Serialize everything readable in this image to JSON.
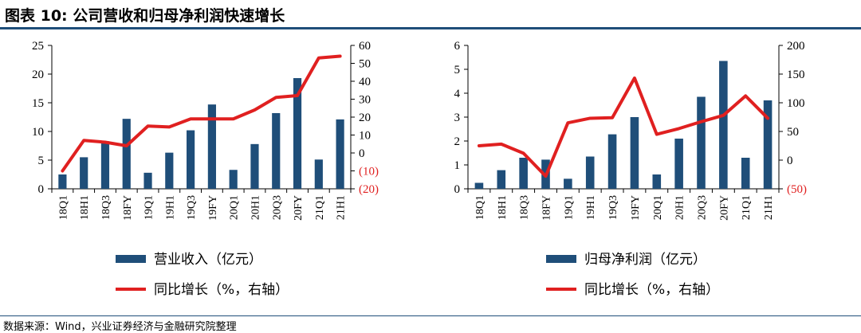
{
  "title": "图表 10:  公司营收和归母净利润快速增长",
  "source": "数据来源：Wind，兴业证券经济与金融研究院整理",
  "colors": {
    "bar": "#1f4e79",
    "line": "#e02020",
    "neg_label": "#e02020"
  },
  "chart_data": [
    {
      "type": "bar",
      "categories": [
        "18Q1",
        "18H1",
        "18Q3",
        "18FY",
        "19Q1",
        "19H1",
        "19Q3",
        "19FY",
        "20Q1",
        "20H1",
        "20Q3",
        "20FY",
        "21Q1",
        "21H1"
      ],
      "series": [
        {
          "name": "营业收入（亿元）",
          "type": "bar",
          "axis": "left",
          "values": [
            2.5,
            5.5,
            8.3,
            12.2,
            2.8,
            6.3,
            10.2,
            14.7,
            3.3,
            7.8,
            13.2,
            19.3,
            5.1,
            12.1
          ]
        },
        {
          "name": "同比增长（%，右轴）",
          "type": "line",
          "axis": "right",
          "values": [
            -10,
            7,
            6,
            4,
            15,
            14.5,
            19,
            19,
            19,
            24,
            31,
            32,
            53,
            54
          ]
        }
      ],
      "y_left": {
        "min": 0,
        "max": 25,
        "ticks": [
          0,
          5,
          10,
          15,
          20,
          25
        ],
        "tick_labels": [
          "0",
          "5",
          "10",
          "15",
          "20",
          "25"
        ]
      },
      "y_right": {
        "min": -20,
        "max": 60,
        "ticks": [
          -20,
          -10,
          0,
          10,
          20,
          30,
          40,
          50,
          60
        ],
        "tick_labels": [
          "(20)",
          "(10)",
          "0",
          "10",
          "20",
          "30",
          "40",
          "50",
          "60"
        ]
      },
      "grid": false,
      "legend_position": "bottom"
    },
    {
      "type": "bar",
      "categories": [
        "18Q1",
        "18H1",
        "18Q3",
        "18FY",
        "19Q1",
        "19H1",
        "19Q3",
        "19FY",
        "20Q1",
        "20H1",
        "20Q3",
        "20FY",
        "21Q1",
        "21H1"
      ],
      "series": [
        {
          "name": "归母净利润（亿元）",
          "type": "bar",
          "axis": "left",
          "values": [
            0.25,
            0.78,
            1.3,
            1.22,
            0.42,
            1.35,
            2.28,
            3.0,
            0.6,
            2.1,
            3.85,
            5.35,
            1.3,
            3.7
          ]
        },
        {
          "name": "同比增长（%，右轴）",
          "type": "line",
          "axis": "right",
          "values": [
            25,
            28,
            12,
            -28,
            65,
            73,
            74,
            143,
            45,
            55,
            67,
            78,
            112,
            73
          ]
        }
      ],
      "y_left": {
        "min": 0,
        "max": 6,
        "ticks": [
          0,
          1,
          2,
          3,
          4,
          5,
          6
        ],
        "tick_labels": [
          "0",
          "1",
          "2",
          "3",
          "4",
          "5",
          "6"
        ]
      },
      "y_right": {
        "min": -50,
        "max": 200,
        "ticks": [
          -50,
          0,
          50,
          100,
          150,
          200
        ],
        "tick_labels": [
          "(50)",
          "0",
          "50",
          "100",
          "150",
          "200"
        ]
      },
      "grid": false,
      "legend_position": "bottom"
    }
  ]
}
